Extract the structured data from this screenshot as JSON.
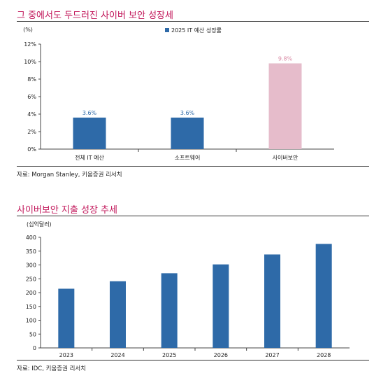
{
  "section1": {
    "title": "그 중에서도 두드러진 사이버 보안 성장세",
    "source": "자료: Morgan Stanley, 키움증권 리서치"
  },
  "section2": {
    "title": "사이버보안 지출 성장 추세",
    "source": "자료: IDC, 키움증권 리서치"
  },
  "chart_data": [
    {
      "type": "bar",
      "unit_label": "(%)",
      "legend": "2025 IT 예산 성장률",
      "categories": [
        "전체 IT 예산",
        "소프트웨어",
        "사이버보안"
      ],
      "values": [
        3.6,
        3.6,
        9.8
      ],
      "data_labels": [
        "3.6%",
        "3.6%",
        "9.8%"
      ],
      "yticks": [
        "0%",
        "2%",
        "4%",
        "6%",
        "8%",
        "10%",
        "12%"
      ],
      "ylim": [
        0,
        12
      ],
      "colors": [
        "#2e6aa8",
        "#2e6aa8",
        "#e6bccb"
      ],
      "label_colors": [
        "#2e6aa8",
        "#2e6aa8",
        "#d98aa4"
      ],
      "legend_color": "#2e6aa8",
      "grid": false,
      "legend_position": "top-center"
    },
    {
      "type": "bar",
      "unit_label": "(십억달러)",
      "categories": [
        "2023",
        "2024",
        "2025",
        "2026",
        "2027",
        "2028"
      ],
      "values": [
        214,
        241,
        270,
        302,
        338,
        376
      ],
      "yticks": [
        "0",
        "50",
        "100",
        "150",
        "200",
        "250",
        "300",
        "350",
        "400"
      ],
      "ylim": [
        0,
        400
      ],
      "bar_color": "#2e6aa8",
      "grid": false
    }
  ]
}
